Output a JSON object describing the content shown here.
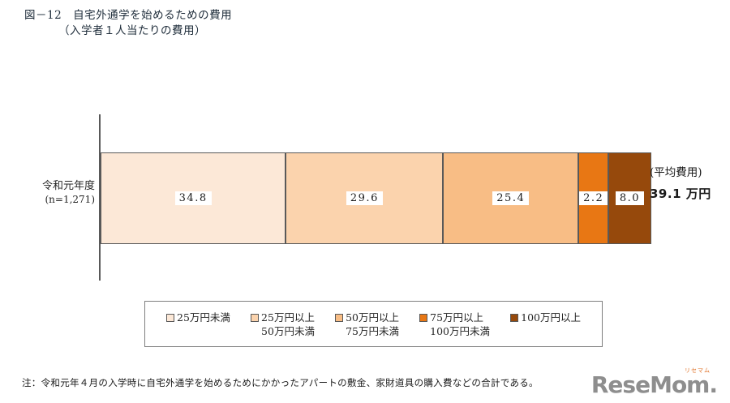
{
  "title": {
    "line1": "図－12　自宅外通学を始めるための費用",
    "line2": "（入学者１人当たりの費用）"
  },
  "chart_data": {
    "type": "bar",
    "orientation": "horizontal-stacked",
    "category_label": "令和元年度",
    "category_sublabel": "(n=1,271)",
    "series": [
      {
        "name": "25万円未満",
        "value": 34.8,
        "color": "#fce8d7"
      },
      {
        "name": "25万円以上50万円未満",
        "value": 29.6,
        "color": "#fbd3ad"
      },
      {
        "name": "50万円以上75万円未満",
        "value": 25.4,
        "color": "#f8bd85"
      },
      {
        "name": "75万円以上100万円未満",
        "value": 2.2,
        "color": "#e87714"
      },
      {
        "name": "100万円以上",
        "value": 8.0,
        "color": "#96490c"
      }
    ],
    "xlim": [
      0,
      100
    ],
    "unit": "%",
    "average_label": "(平均費用)",
    "average_value": "39.1 万円",
    "border_color": "#595959"
  },
  "legend": {
    "items": [
      {
        "line1": "25万円未満",
        "line2": "",
        "color": "#fce8d7"
      },
      {
        "line1": "25万円以上",
        "line2": "50万円未満",
        "color": "#fbd3ad"
      },
      {
        "line1": "50万円以上",
        "line2": "75万円未満",
        "color": "#f8bd85"
      },
      {
        "line1": "75万円以上",
        "line2": "100万円未満",
        "color": "#e87714"
      },
      {
        "line1": "100万円以上",
        "line2": "",
        "color": "#96490c"
      }
    ]
  },
  "note": "注：令和元年４月の入学時に自宅外通学を始めるためにかかったアパートの敷金、家財道具の購入費などの合計である。",
  "logo": {
    "text": "ReseMom.",
    "ruby": "リセマム",
    "color": "#8e8e8e",
    "ruby_color": "#e0732a"
  }
}
